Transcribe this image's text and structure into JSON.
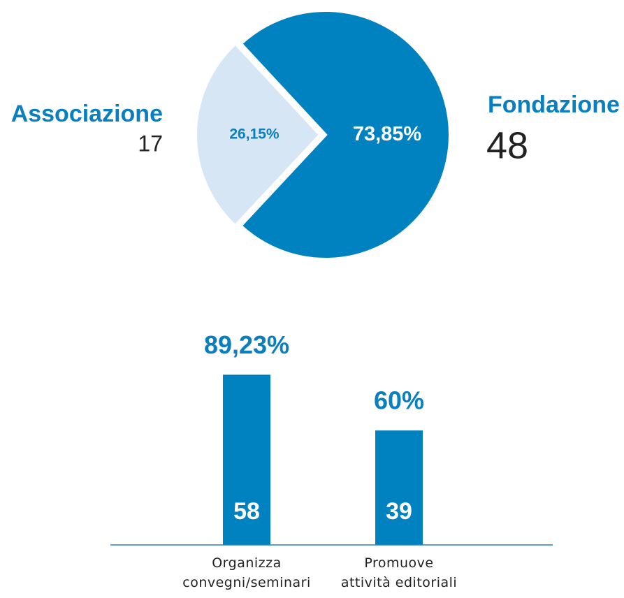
{
  "chart_data": [
    {
      "type": "pie",
      "categories": [
        "Associazione",
        "Fondazione"
      ],
      "values": [
        26.15,
        73.85
      ],
      "value_labels": [
        "26,15%",
        "73,85%"
      ],
      "counts": [
        17,
        48
      ],
      "colors": [
        "#d6e6f4",
        "#0082c0"
      ]
    },
    {
      "type": "bar",
      "categories": [
        "Organizza\nconvegni/seminari",
        "Promuove\nattività editoriali"
      ],
      "values": [
        89.23,
        60
      ],
      "value_labels": [
        "89,23%",
        "60%"
      ],
      "counts": [
        58,
        39
      ],
      "color": "#0082c0",
      "ylim": [
        0,
        100
      ]
    }
  ]
}
